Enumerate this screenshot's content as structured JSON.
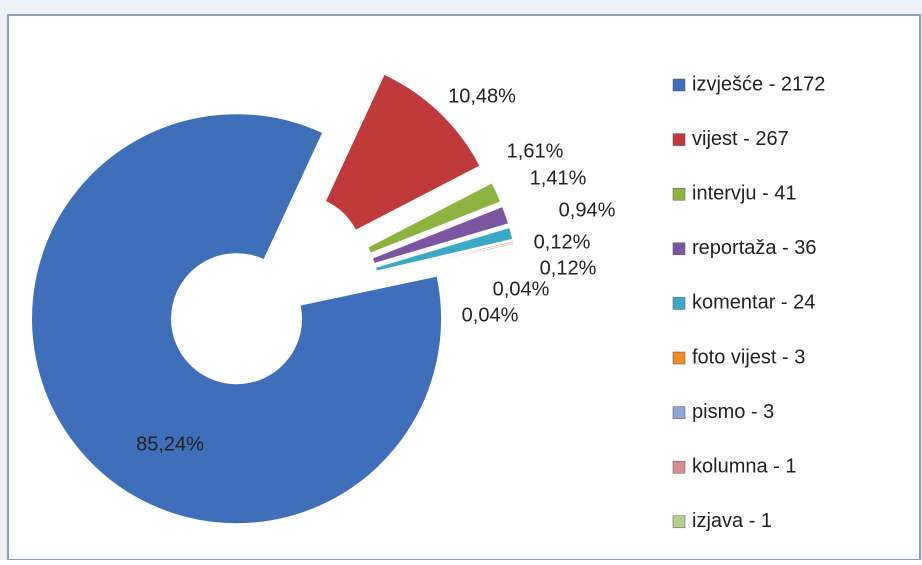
{
  "chart_data": {
    "type": "donut",
    "categories": [
      "izvješće - 2172",
      "vijest - 267",
      "intervju - 41",
      "reportaža - 36",
      "komentar - 24",
      "foto vijest - 3",
      "pismo - 3",
      "kolumna - 1",
      "izjava - 1"
    ],
    "values": [
      85.24,
      10.48,
      1.61,
      1.41,
      0.94,
      0.12,
      0.12,
      0.04,
      0.04
    ],
    "value_labels": [
      "85,24%",
      "10,48%",
      "1,61%",
      "1,41%",
      "0,94%",
      "0,12%",
      "0,12%",
      "0,04%",
      "0,04%"
    ],
    "colors": [
      "#3f6fba",
      "#c0393b",
      "#8db43e",
      "#7b55a0",
      "#3aa9c6",
      "#f08a24",
      "#8fa8d6",
      "#d98c8c",
      "#b7d08c"
    ],
    "legend": "right"
  }
}
